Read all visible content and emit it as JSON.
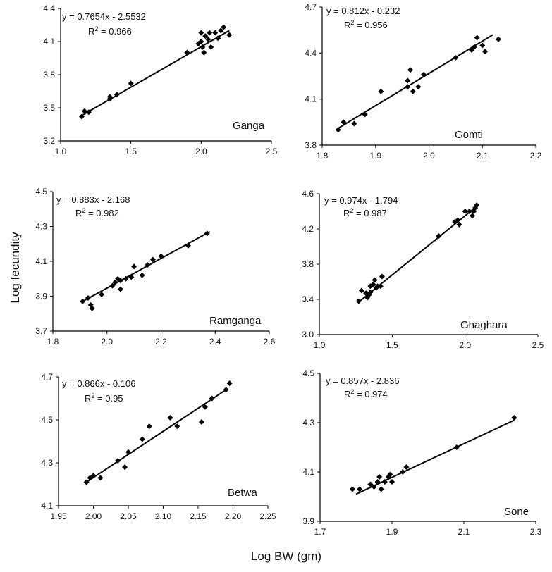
{
  "figure": {
    "ylabel": "Log fecundity",
    "xlabel": "Log BW (gm)"
  },
  "chart_data": [
    {
      "type": "scatter",
      "title": "Ganga",
      "equation": "y = 0.7654x - 2.5532",
      "r2_prefix": "R",
      "r2_value": " = 0.966",
      "xlim": [
        1.0,
        2.5
      ],
      "ylim": [
        3.2,
        4.4
      ],
      "xticks": [
        "1.0",
        "1.5",
        "2.0",
        "2.5"
      ],
      "yticks": [
        "3.2",
        "3.5",
        "3.8",
        "4.1",
        "4.4"
      ],
      "trendline": [
        [
          1.15,
          3.43
        ],
        [
          2.2,
          4.2
        ]
      ],
      "points": [
        [
          1.15,
          3.42
        ],
        [
          1.17,
          3.47
        ],
        [
          1.2,
          3.46
        ],
        [
          1.35,
          3.58
        ],
        [
          1.35,
          3.6
        ],
        [
          1.4,
          3.62
        ],
        [
          1.5,
          3.72
        ],
        [
          1.9,
          4.0
        ],
        [
          1.98,
          4.08
        ],
        [
          2.0,
          4.18
        ],
        [
          2.0,
          4.1
        ],
        [
          2.01,
          4.05
        ],
        [
          2.02,
          4.0
        ],
        [
          2.03,
          4.15
        ],
        [
          2.05,
          4.12
        ],
        [
          2.06,
          4.18
        ],
        [
          2.07,
          4.05
        ],
        [
          2.1,
          4.18
        ],
        [
          2.12,
          4.13
        ],
        [
          2.14,
          4.2
        ],
        [
          2.16,
          4.23
        ],
        [
          2.2,
          4.16
        ]
      ]
    },
    {
      "type": "scatter",
      "title": "Gomti",
      "equation": "y = 0.812x - 0.232",
      "r2_prefix": "R",
      "r2_value": " = 0.956",
      "xlim": [
        1.8,
        2.2
      ],
      "ylim": [
        3.8,
        4.7
      ],
      "xticks": [
        "1.8",
        "1.9",
        "2.0",
        "2.1",
        "2.2"
      ],
      "yticks": [
        "3.8",
        "4.1",
        "4.4",
        "4.7"
      ],
      "trendline": [
        [
          1.83,
          3.91
        ],
        [
          2.12,
          4.52
        ]
      ],
      "points": [
        [
          1.83,
          3.9
        ],
        [
          1.84,
          3.95
        ],
        [
          1.86,
          3.94
        ],
        [
          1.88,
          4.0
        ],
        [
          1.91,
          4.15
        ],
        [
          1.96,
          4.18
        ],
        [
          1.96,
          4.22
        ],
        [
          1.965,
          4.29
        ],
        [
          1.97,
          4.15
        ],
        [
          1.98,
          4.18
        ],
        [
          1.99,
          4.26
        ],
        [
          2.05,
          4.37
        ],
        [
          2.08,
          4.42
        ],
        [
          2.085,
          4.44
        ],
        [
          2.09,
          4.5
        ],
        [
          2.1,
          4.45
        ],
        [
          2.105,
          4.41
        ],
        [
          2.13,
          4.49
        ]
      ]
    },
    {
      "type": "scatter",
      "title": "Ramganga",
      "equation": "y = 0.883x - 2.168",
      "r2_prefix": "R",
      "r2_value": " = 0.982",
      "xlim": [
        1.8,
        2.6
      ],
      "ylim": [
        3.7,
        4.5
      ],
      "xticks": [
        "1.8",
        "2.0",
        "2.2",
        "2.4",
        "2.6"
      ],
      "yticks": [
        "3.7",
        "3.9",
        "4.1",
        "4.3",
        "4.5"
      ],
      "trendline": [
        [
          1.91,
          3.87
        ],
        [
          2.38,
          4.27
        ]
      ],
      "points": [
        [
          1.91,
          3.87
        ],
        [
          1.93,
          3.89
        ],
        [
          1.94,
          3.85
        ],
        [
          1.945,
          3.83
        ],
        [
          1.98,
          3.91
        ],
        [
          2.02,
          3.96
        ],
        [
          2.03,
          3.98
        ],
        [
          2.04,
          4.0
        ],
        [
          2.05,
          3.99
        ],
        [
          2.05,
          3.94
        ],
        [
          2.07,
          4.0
        ],
        [
          2.09,
          4.01
        ],
        [
          2.1,
          4.07
        ],
        [
          2.13,
          4.02
        ],
        [
          2.15,
          4.08
        ],
        [
          2.17,
          4.11
        ],
        [
          2.2,
          4.13
        ],
        [
          2.3,
          4.19
        ],
        [
          2.37,
          4.26
        ]
      ]
    },
    {
      "type": "scatter",
      "title": "Ghaghara",
      "equation": "y = 0.974x - 1.794",
      "r2_prefix": "R",
      "r2_value": " = 0.987",
      "xlim": [
        1.0,
        2.5
      ],
      "ylim": [
        3.0,
        4.6
      ],
      "xticks": [
        "1.0",
        "1.5",
        "2.0",
        "2.5"
      ],
      "yticks": [
        "3.0",
        "3.4",
        "3.8",
        "4.2",
        "4.6"
      ],
      "trendline": [
        [
          1.27,
          3.37
        ],
        [
          2.09,
          4.47
        ]
      ],
      "points": [
        [
          1.27,
          3.38
        ],
        [
          1.29,
          3.5
        ],
        [
          1.32,
          3.47
        ],
        [
          1.33,
          3.42
        ],
        [
          1.34,
          3.45
        ],
        [
          1.35,
          3.55
        ],
        [
          1.35,
          3.48
        ],
        [
          1.37,
          3.57
        ],
        [
          1.38,
          3.62
        ],
        [
          1.39,
          3.53
        ],
        [
          1.4,
          3.55
        ],
        [
          1.42,
          3.55
        ],
        [
          1.43,
          3.66
        ],
        [
          1.82,
          4.12
        ],
        [
          1.93,
          4.28
        ],
        [
          1.95,
          4.3
        ],
        [
          1.96,
          4.25
        ],
        [
          2.0,
          4.4
        ],
        [
          2.03,
          4.4
        ],
        [
          2.05,
          4.35
        ],
        [
          2.06,
          4.4
        ],
        [
          2.07,
          4.44
        ],
        [
          2.08,
          4.47
        ]
      ]
    },
    {
      "type": "scatter",
      "title": "Betwa",
      "equation": "y = 0.866x - 0.106",
      "r2_prefix": "R",
      "r2_value": " = 0.95",
      "xlim": [
        1.95,
        2.25
      ],
      "ylim": [
        4.1,
        4.7
      ],
      "xticks": [
        "1.95",
        "2.00",
        "2.05",
        "2.10",
        "2.15",
        "2.20",
        "2.25"
      ],
      "yticks": [
        "4.1",
        "4.3",
        "4.5",
        "4.7"
      ],
      "trendline": [
        [
          1.99,
          4.21
        ],
        [
          2.19,
          4.64
        ]
      ],
      "points": [
        [
          1.99,
          4.21
        ],
        [
          1.995,
          4.23
        ],
        [
          2.0,
          4.24
        ],
        [
          2.01,
          4.23
        ],
        [
          2.035,
          4.31
        ],
        [
          2.045,
          4.28
        ],
        [
          2.05,
          4.35
        ],
        [
          2.07,
          4.41
        ],
        [
          2.08,
          4.47
        ],
        [
          2.11,
          4.51
        ],
        [
          2.12,
          4.47
        ],
        [
          2.155,
          4.49
        ],
        [
          2.16,
          4.56
        ],
        [
          2.17,
          4.6
        ],
        [
          2.19,
          4.64
        ],
        [
          2.195,
          4.67
        ]
      ]
    },
    {
      "type": "scatter",
      "title": "Sone",
      "equation": "y = 0.857x - 2.836",
      "r2_prefix": "R",
      "r2_value": " = 0.974",
      "xlim": [
        1.7,
        2.3
      ],
      "ylim": [
        3.9,
        4.5
      ],
      "xticks": [
        "1.7",
        "1.9",
        "2.1",
        "2.3"
      ],
      "yticks": [
        "3.9",
        "4.1",
        "4.3",
        "4.5"
      ],
      "trendline": [
        [
          1.8,
          4.01
        ],
        [
          2.24,
          4.31
        ]
      ],
      "points": [
        [
          1.79,
          4.03
        ],
        [
          1.81,
          4.03
        ],
        [
          1.84,
          4.05
        ],
        [
          1.85,
          4.04
        ],
        [
          1.86,
          4.06
        ],
        [
          1.865,
          4.08
        ],
        [
          1.87,
          4.03
        ],
        [
          1.88,
          4.06
        ],
        [
          1.89,
          4.08
        ],
        [
          1.895,
          4.09
        ],
        [
          1.9,
          4.06
        ],
        [
          1.93,
          4.1
        ],
        [
          1.94,
          4.12
        ],
        [
          2.08,
          4.2
        ],
        [
          2.24,
          4.32
        ]
      ]
    }
  ]
}
